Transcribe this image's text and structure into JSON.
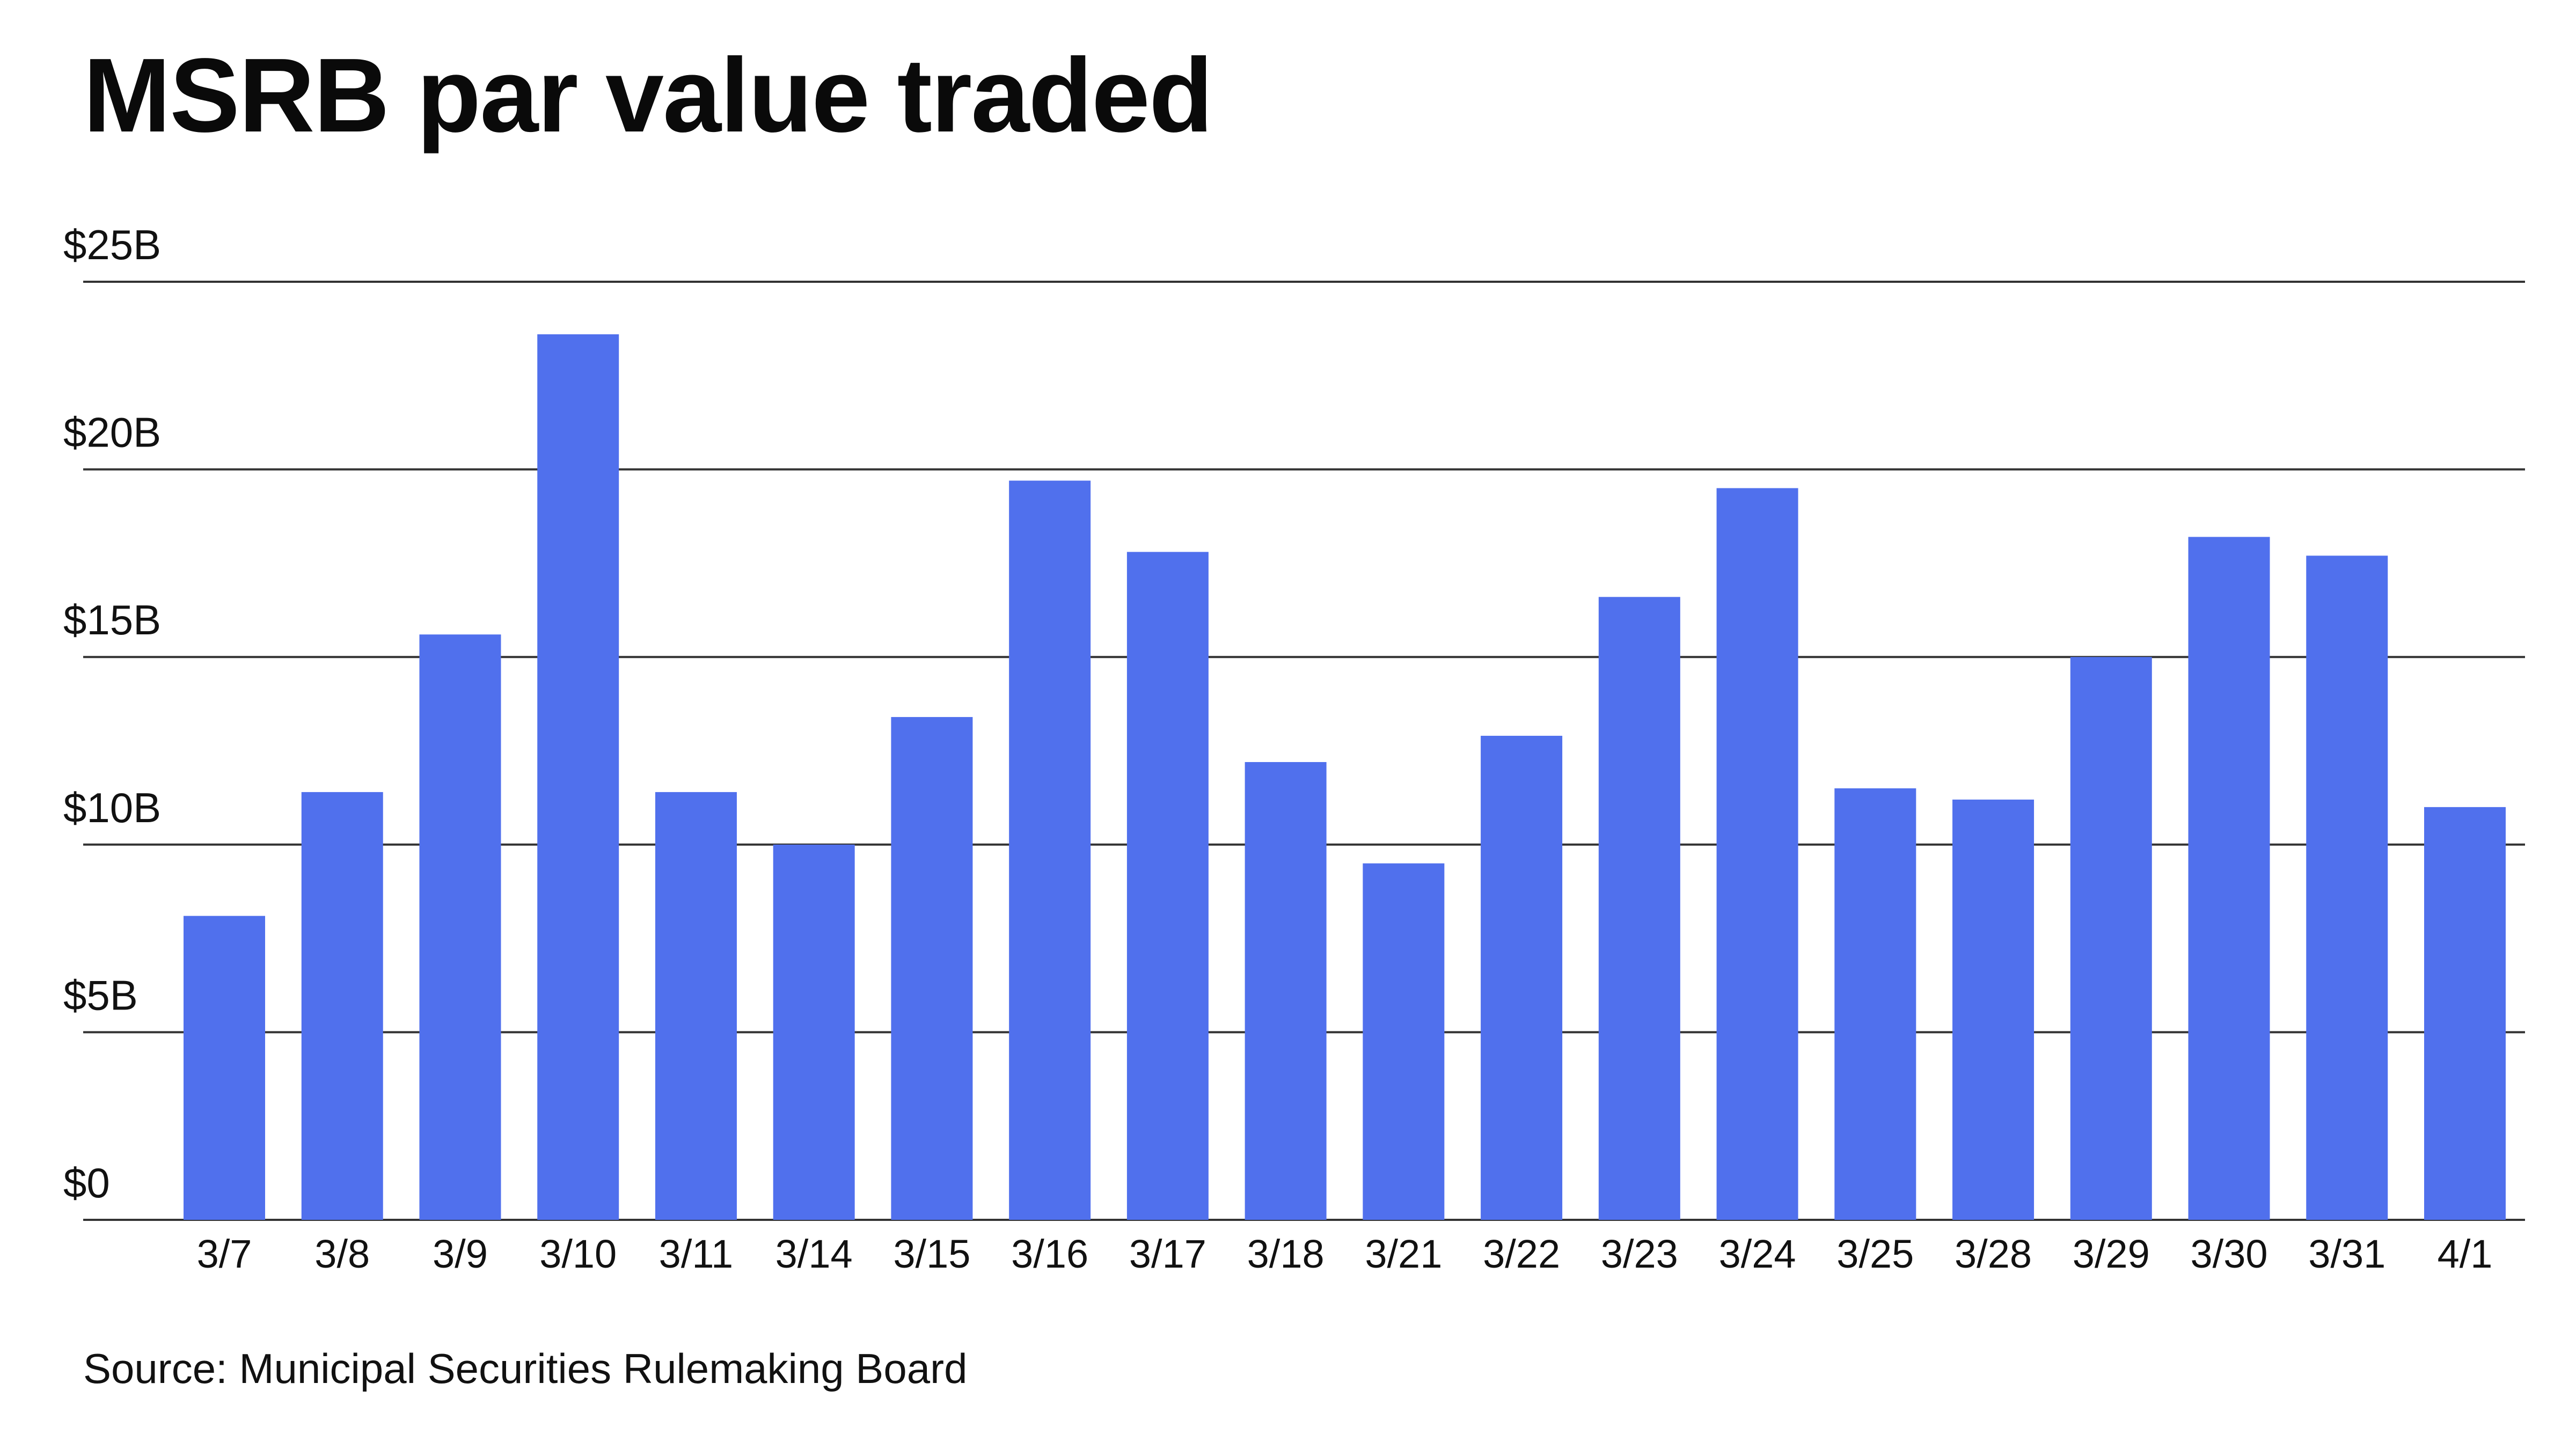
{
  "title": "MSRB par value traded",
  "source": "Source: Municipal Securities Rulemaking Board",
  "colors": {
    "bar": "#5070ED",
    "gridline": "#333333",
    "text": "#111111",
    "background": "#FFFFFF"
  },
  "chart_data": {
    "type": "bar",
    "title": "MSRB par value traded",
    "categories": [
      "3/7",
      "3/8",
      "3/9",
      "3/10",
      "3/11",
      "3/14",
      "3/15",
      "3/16",
      "3/17",
      "3/18",
      "3/21",
      "3/22",
      "3/23",
      "3/24",
      "3/25",
      "3/28",
      "3/29",
      "3/30",
      "3/31",
      "4/1"
    ],
    "values": [
      8.1,
      11.4,
      15.6,
      23.6,
      11.4,
      10.0,
      13.4,
      19.7,
      17.8,
      12.2,
      9.5,
      12.9,
      16.6,
      19.5,
      11.5,
      11.2,
      15.0,
      18.2,
      17.7,
      11.0
    ],
    "unit": "billions of dollars",
    "ylim": [
      0,
      25
    ],
    "yticks": [
      0,
      5,
      10,
      15,
      20,
      25
    ],
    "ytick_labels": [
      "$0",
      "$5B",
      "$10B",
      "$15B",
      "$20B",
      "$25B"
    ],
    "xlabel": "",
    "ylabel": "",
    "grid": true,
    "legend": "none"
  }
}
